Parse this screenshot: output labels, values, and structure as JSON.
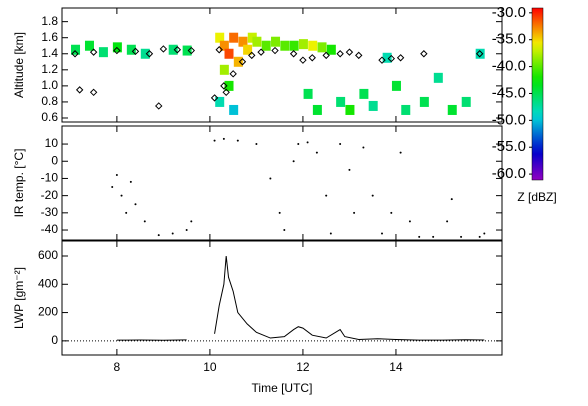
{
  "chart_data": [
    {
      "type": "heatmap",
      "ylabel": "Altitude [km]",
      "xlim": [
        6.82,
        16.28
      ],
      "xticks": [
        8,
        10,
        12,
        14
      ],
      "ylim": [
        0.55,
        1.97
      ],
      "yticks": [
        0.6,
        0.8,
        {
          "value": 1,
          "label": "1.0"
        },
        1.2,
        1.4,
        1.6,
        1.8
      ],
      "reflectivity": {
        "x": [
          7.1,
          7.4,
          7.7,
          8.0,
          8.3,
          8.6,
          9.2,
          9.5,
          10.2,
          10.3,
          10.4,
          10.5,
          10.6,
          10.7,
          10.8,
          10.9,
          10.3,
          10.4,
          10.2,
          10.5,
          11.0,
          11.2,
          11.4,
          11.6,
          11.8,
          12.0,
          12.2,
          12.4,
          12.6,
          12.1,
          12.3,
          12.8,
          13.0,
          13.3,
          13.5,
          13.8,
          14.0,
          14.2,
          14.6,
          14.9,
          15.2,
          15.5,
          15.8
        ],
        "y": [
          1.45,
          1.5,
          1.42,
          1.48,
          1.45,
          1.4,
          1.45,
          1.44,
          1.6,
          1.5,
          1.4,
          1.6,
          1.3,
          1.55,
          1.45,
          1.6,
          1.2,
          1.0,
          0.8,
          0.7,
          1.55,
          1.5,
          1.55,
          1.5,
          1.5,
          1.52,
          1.5,
          1.48,
          1.45,
          0.9,
          0.7,
          0.8,
          0.7,
          0.9,
          0.75,
          1.35,
          1.0,
          0.7,
          0.8,
          1.1,
          0.7,
          0.8,
          1.4
        ],
        "z": [
          -45,
          -44,
          -46,
          -43,
          -45,
          -47,
          -46,
          -45,
          -36,
          -33,
          -31,
          -32,
          -34,
          -33,
          -35,
          -37,
          -38,
          -42,
          -48,
          -50,
          -38,
          -40,
          -39,
          -40,
          -41,
          -38,
          -36,
          -39,
          -42,
          -45,
          -44,
          -46,
          -42,
          -45,
          -47,
          -48,
          -44,
          -46,
          -45,
          -47,
          -44,
          -46,
          -48
        ]
      },
      "cloud_base": {
        "x": [
          7.1,
          7.5,
          8.0,
          8.4,
          8.7,
          7.2,
          7.5,
          9.0,
          9.3,
          9.6,
          8.9,
          10.1,
          10.2,
          10.3,
          10.35,
          10.5,
          10.7,
          10.9,
          11.1,
          11.4,
          11.8,
          12.0,
          12.2,
          12.5,
          12.8,
          13.0,
          13.2,
          13.7,
          13.9,
          14.1,
          14.6,
          15.8
        ],
        "y": [
          1.4,
          1.42,
          1.44,
          1.43,
          1.4,
          0.95,
          0.92,
          1.46,
          1.45,
          1.44,
          0.75,
          0.85,
          1.45,
          1.0,
          0.92,
          1.15,
          1.3,
          1.38,
          1.42,
          1.44,
          1.4,
          1.32,
          1.35,
          1.38,
          1.4,
          1.42,
          1.38,
          1.32,
          1.34,
          1.35,
          1.4,
          1.4
        ]
      },
      "colorbar": {
        "title": "Z [dBZ]",
        "lim": [
          -61.1,
          -29.1
        ],
        "ticks": [
          {
            "value": -30,
            "label": "-30.0"
          },
          {
            "value": -35,
            "label": "-35.0"
          },
          {
            "value": -40,
            "label": "-40.0"
          },
          {
            "value": -45,
            "label": "-45.0"
          },
          {
            "value": -50,
            "label": "-50.0"
          },
          {
            "value": -55,
            "label": "-55.0"
          },
          {
            "value": -60,
            "label": "-60.0"
          }
        ]
      }
    },
    {
      "type": "scatter",
      "ylabel": "IR temp. [°C]",
      "xlim": [
        6.82,
        16.28
      ],
      "xticks": [
        8,
        10,
        12,
        14
      ],
      "ylim": [
        -45.8,
        20.5
      ],
      "yticks": [
        10,
        0,
        -10,
        -20,
        -30,
        -40
      ],
      "x": [
        7.9,
        8.0,
        8.1,
        8.2,
        8.3,
        8.4,
        8.6,
        8.9,
        9.2,
        9.5,
        9.6,
        10.1,
        10.3,
        10.6,
        11.0,
        11.3,
        11.5,
        11.6,
        11.8,
        11.9,
        12.1,
        12.3,
        12.5,
        12.6,
        12.8,
        13.0,
        13.1,
        13.3,
        13.5,
        13.7,
        13.9,
        14.1,
        14.3,
        14.5,
        14.8,
        15.1,
        15.2,
        15.4,
        15.8,
        15.9
      ],
      "values": [
        -15,
        -8,
        -20,
        -30,
        -12,
        -25,
        -35,
        -43,
        -42,
        -40,
        -35,
        12,
        13,
        12,
        10,
        -10,
        -30,
        -40,
        0,
        10,
        11,
        5,
        -20,
        -42,
        10,
        -5,
        -30,
        8,
        -20,
        -42,
        -30,
        5,
        -35,
        -44,
        -44,
        -35,
        -22,
        -44,
        -44,
        -42
      ]
    },
    {
      "type": "line",
      "ylabel": "LWP [gm⁻²]",
      "xlabel": "Time [UTC]",
      "xlim": [
        6.82,
        16.28
      ],
      "xticks": [
        8,
        10,
        12,
        14
      ],
      "ylim": [
        -100,
        706
      ],
      "yticks": [
        0,
        200,
        400,
        600
      ],
      "hline": 0,
      "x": [
        8.0,
        8.5,
        9.0,
        9.5,
        9.8,
        10.1,
        10.2,
        10.3,
        10.35,
        10.4,
        10.5,
        10.6,
        10.8,
        11.0,
        11.3,
        11.6,
        11.8,
        11.9,
        12.0,
        12.2,
        12.5,
        12.8,
        12.9,
        13.2,
        13.6,
        14.0,
        14.5,
        15.0,
        15.5,
        15.9
      ],
      "values": [
        5,
        6,
        4,
        7,
        null,
        50,
        250,
        400,
        600,
        450,
        350,
        200,
        120,
        60,
        20,
        30,
        80,
        100,
        90,
        40,
        20,
        80,
        30,
        10,
        15,
        10,
        5,
        5,
        8,
        6
      ]
    }
  ]
}
